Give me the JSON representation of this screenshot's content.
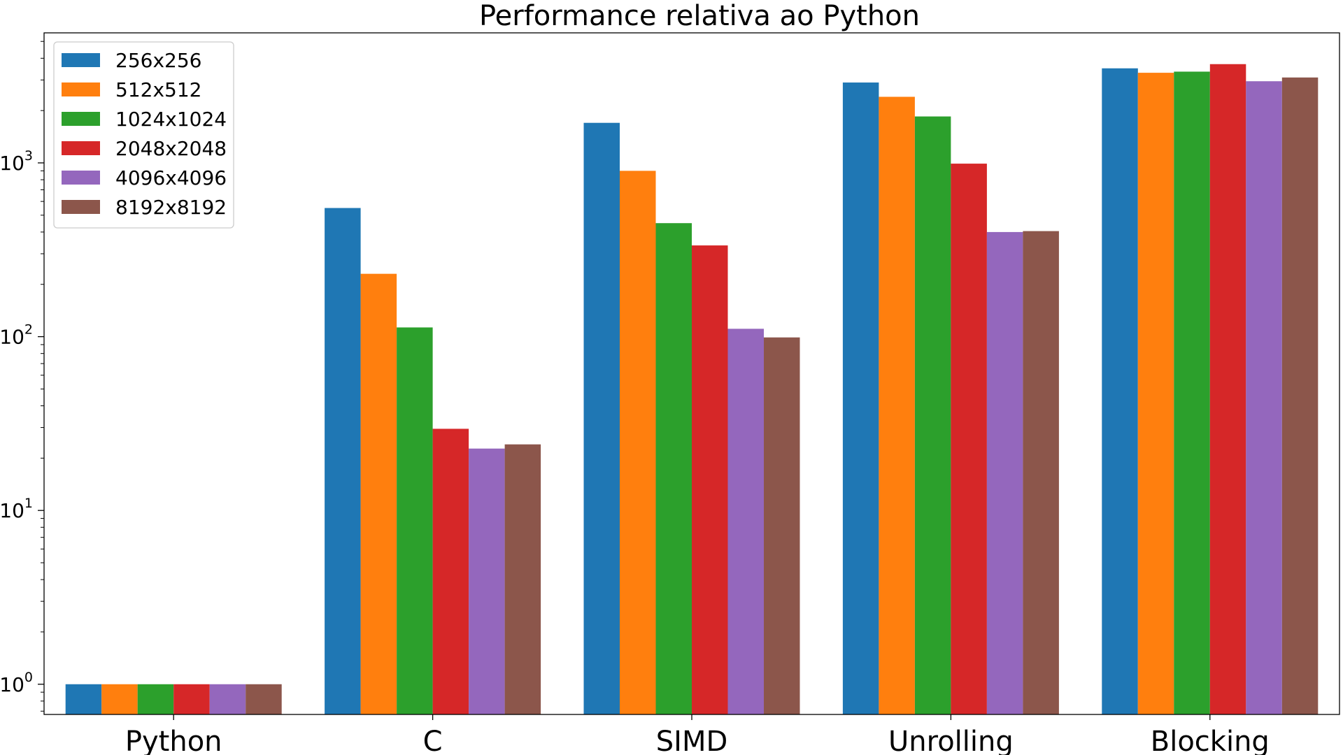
{
  "chart_data": {
    "type": "bar",
    "title": "Performance relativa ao Python",
    "xlabel": "",
    "ylabel": "",
    "yscale": "log",
    "ylim": [
      0.67,
      5600
    ],
    "yticks": [
      {
        "value": 1,
        "base": "10",
        "exp": "0"
      },
      {
        "value": 10,
        "base": "10",
        "exp": "1"
      },
      {
        "value": 100,
        "base": "10",
        "exp": "2"
      },
      {
        "value": 1000,
        "base": "10",
        "exp": "3"
      }
    ],
    "grid": false,
    "legend_position": "top-left",
    "categories": [
      "Python",
      "C",
      "SIMD",
      "Unrolling",
      "Blocking"
    ],
    "series": [
      {
        "name": "256x256",
        "color": "#1f77b4",
        "values": [
          1,
          550,
          1700,
          2900,
          3500
        ]
      },
      {
        "name": "512x512",
        "color": "#ff7f0e",
        "values": [
          1,
          230,
          900,
          2400,
          3300
        ]
      },
      {
        "name": "1024x1024",
        "color": "#2ca02c",
        "values": [
          1,
          113,
          450,
          1850,
          3350
        ]
      },
      {
        "name": "2048x2048",
        "color": "#d62728",
        "values": [
          1,
          29.5,
          335,
          990,
          3700
        ]
      },
      {
        "name": "4096x4096",
        "color": "#9467bd",
        "values": [
          1,
          22.7,
          111,
          400,
          2950
        ]
      },
      {
        "name": "8192x8192",
        "color": "#8c564b",
        "values": [
          1,
          24,
          99,
          405,
          3100
        ]
      }
    ]
  }
}
